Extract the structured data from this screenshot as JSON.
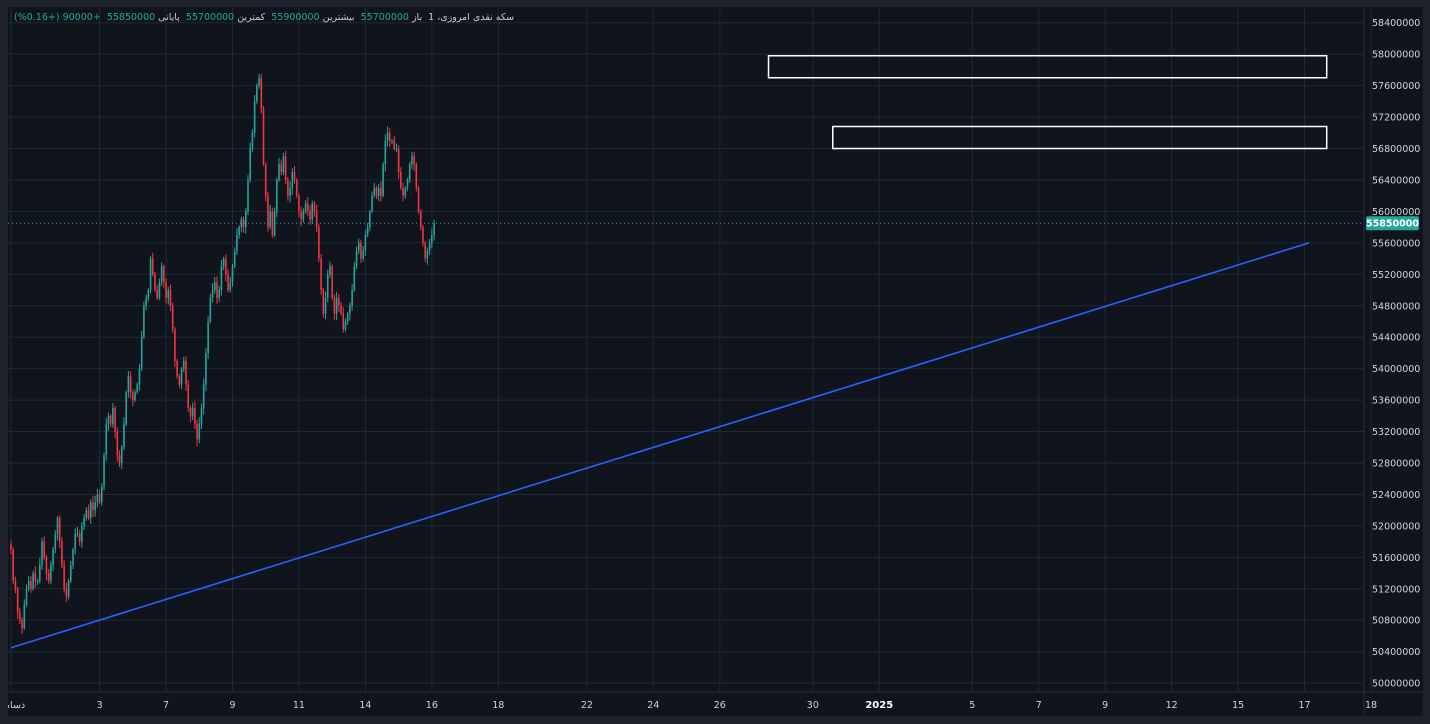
{
  "legend": {
    "symbol": "سکه نقدی امروزی، 1",
    "open_label": "باز",
    "open_value": "55700000",
    "high_label": "بیشترین",
    "high_value": "55900000",
    "low_label": "کمترین",
    "low_value": "55700000",
    "close_label": "پایانی",
    "close_value": "55850000",
    "change": "+90000 (+0.16%)"
  },
  "colors": {
    "background": "#0f141d",
    "up": "#26a69a",
    "down": "#f23645",
    "trendline": "#2962ff",
    "grid": "#1f2a33",
    "box": "#ffffff"
  },
  "chart_data": {
    "type": "candlestick",
    "ylim": [
      49900000,
      58600000
    ],
    "y_ticks": [
      50000000,
      50400000,
      50800000,
      51200000,
      51600000,
      52000000,
      52400000,
      52800000,
      53200000,
      53600000,
      54000000,
      54400000,
      54800000,
      55200000,
      55600000,
      56000000,
      56400000,
      56800000,
      57200000,
      57600000,
      58000000,
      58400000
    ],
    "x_ticks": [
      {
        "label": "دسامبر",
        "bar": 0
      },
      {
        "label": "3",
        "bar": 40
      },
      {
        "label": "7",
        "bar": 70
      },
      {
        "label": "9",
        "bar": 100
      },
      {
        "label": "11",
        "bar": 130
      },
      {
        "label": "14",
        "bar": 160
      },
      {
        "label": "16",
        "bar": 190
      },
      {
        "label": "18",
        "bar": 220
      },
      {
        "label": "22",
        "bar": 260
      },
      {
        "label": "24",
        "bar": 290
      },
      {
        "label": "26",
        "bar": 320
      },
      {
        "label": "30",
        "bar": 362
      },
      {
        "label": "2025",
        "bar": 392,
        "bold": true
      },
      {
        "label": "5",
        "bar": 434
      },
      {
        "label": "7",
        "bar": 464
      },
      {
        "label": "9",
        "bar": 494
      },
      {
        "label": "12",
        "bar": 524
      },
      {
        "label": "15",
        "bar": 554
      },
      {
        "label": "17",
        "bar": 584
      },
      {
        "label": "18",
        "bar": 614
      }
    ],
    "last_price": 55850000,
    "price_label": "55850000",
    "closes": [
      51700000,
      51300000,
      51200000,
      50900000,
      50800000,
      50700000,
      51000000,
      51200000,
      51300000,
      51200000,
      51400000,
      51300000,
      51300000,
      51500000,
      51800000,
      51600000,
      51400000,
      51300000,
      51500000,
      51700000,
      51900000,
      52100000,
      51800000,
      51500000,
      51200000,
      51100000,
      51300000,
      51500000,
      51700000,
      51900000,
      51900000,
      51800000,
      52000000,
      52100000,
      52200000,
      52100000,
      52300000,
      52200000,
      52300000,
      52400000,
      52300000,
      52500000,
      52900000,
      53300000,
      53400000,
      53300000,
      53500000,
      53200000,
      52900000,
      52800000,
      53000000,
      53300000,
      53700000,
      53900000,
      53700000,
      53600000,
      53700000,
      53800000,
      54000000,
      54400000,
      54800000,
      54900000,
      55000000,
      55400000,
      55200000,
      55000000,
      54900000,
      55100000,
      55300000,
      55100000,
      54900000,
      55000000,
      54800000,
      54500000,
      54100000,
      53900000,
      53800000,
      54000000,
      54100000,
      53800000,
      53500000,
      53400000,
      53500000,
      53300000,
      53100000,
      53300000,
      53500000,
      53800000,
      54200000,
      54600000,
      54900000,
      55000000,
      55100000,
      54900000,
      55000000,
      55300000,
      55400000,
      55200000,
      55000000,
      55100000,
      55300000,
      55500000,
      55700000,
      55800000,
      55900000,
      55800000,
      56000000,
      56400000,
      56800000,
      57000000,
      57400000,
      57600000,
      57700000,
      57300000,
      56600000,
      56200000,
      55800000,
      56000000,
      55700000,
      56000000,
      56400000,
      56600000,
      56500000,
      56700000,
      56400000,
      56200000,
      56300000,
      56500000,
      56400000,
      56200000,
      56000000,
      55900000,
      56000000,
      56100000,
      56000000,
      55900000,
      56100000,
      56000000,
      55800000,
      55400000,
      55000000,
      54700000,
      54900000,
      55200000,
      55300000,
      54900000,
      54700000,
      54900000,
      54800000,
      54700000,
      54500000,
      54600000,
      54700000,
      54800000,
      55000000,
      55300000,
      55500000,
      55600000,
      55400000,
      55500000,
      55700000,
      55800000,
      56000000,
      56200000,
      56300000,
      56200000,
      56300000,
      56200000,
      56600000,
      56900000,
      57000000,
      56900000,
      56900000,
      56800000,
      56800000,
      56500000,
      56300000,
      56200000,
      56300000,
      56400000,
      56600000,
      56700000,
      56600000,
      56300000,
      56000000,
      55800000,
      55600000,
      55400000,
      55500000,
      55600000,
      55700000,
      55850000
    ],
    "trendline": [
      {
        "bar": 0,
        "price": 50450000
      },
      {
        "bar": 586,
        "price": 55600000
      }
    ],
    "zones": [
      {
        "bar_start": 342,
        "bar_end": 594,
        "top": 57980000,
        "bottom": 57700000
      },
      {
        "bar_start": 371,
        "bar_end": 594,
        "top": 57080000,
        "bottom": 56800000
      }
    ]
  }
}
